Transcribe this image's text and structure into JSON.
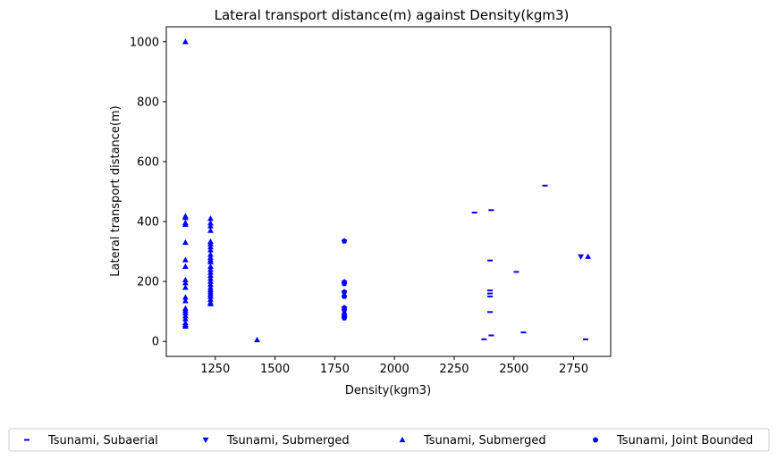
{
  "chart_data": {
    "type": "scatter",
    "title": "Lateral transport distance(m) against Density(kgm3)",
    "xlabel": "Density(kgm3)",
    "ylabel": "Lateral transport distance(m)",
    "xlim": [
      1045,
      2905
    ],
    "ylim": [
      -50,
      1050
    ],
    "xticks": [
      1250,
      1500,
      1750,
      2000,
      2250,
      2500,
      2750
    ],
    "yticks": [
      0,
      200,
      400,
      600,
      800,
      1000
    ],
    "grid": false,
    "legend_position": "bottom, outside plot area",
    "marker_color": "#0000ff",
    "series": [
      {
        "name": "Tsunami, Subaerial",
        "marker": "hline",
        "points": [
          [
            2335,
            430
          ],
          [
            2405,
            438
          ],
          [
            2630,
            520
          ],
          [
            2400,
            270
          ],
          [
            2510,
            232
          ],
          [
            2400,
            170
          ],
          [
            2400,
            160
          ],
          [
            2400,
            150
          ],
          [
            2400,
            98
          ],
          [
            2540,
            30
          ],
          [
            2405,
            20
          ],
          [
            2375,
            7
          ],
          [
            2800,
            7
          ]
        ]
      },
      {
        "name": "Tsunami, Submerged",
        "marker": "triangle-down",
        "points": [
          [
            2780,
            283
          ]
        ]
      },
      {
        "name": "Tsunami, Submerged",
        "marker": "triangle-up",
        "points": [
          [
            1125,
            1000
          ],
          [
            1125,
            418
          ],
          [
            1125,
            413
          ],
          [
            1125,
            396
          ],
          [
            1125,
            390
          ],
          [
            1125,
            330
          ],
          [
            1125,
            272
          ],
          [
            1125,
            250
          ],
          [
            1125,
            205
          ],
          [
            1125,
            195
          ],
          [
            1125,
            180
          ],
          [
            1125,
            147
          ],
          [
            1125,
            135
          ],
          [
            1125,
            110
          ],
          [
            1125,
            103
          ],
          [
            1125,
            95
          ],
          [
            1125,
            85
          ],
          [
            1125,
            75
          ],
          [
            1125,
            62
          ],
          [
            1125,
            55
          ],
          [
            1125,
            50
          ],
          [
            1230,
            410
          ],
          [
            1230,
            395
          ],
          [
            1230,
            385
          ],
          [
            1230,
            370
          ],
          [
            1230,
            333
          ],
          [
            1230,
            325
          ],
          [
            1230,
            315
          ],
          [
            1230,
            305
          ],
          [
            1230,
            290
          ],
          [
            1230,
            280
          ],
          [
            1230,
            272
          ],
          [
            1230,
            265
          ],
          [
            1230,
            250
          ],
          [
            1230,
            240
          ],
          [
            1230,
            230
          ],
          [
            1230,
            220
          ],
          [
            1230,
            210
          ],
          [
            1230,
            200
          ],
          [
            1230,
            190
          ],
          [
            1230,
            180
          ],
          [
            1230,
            172
          ],
          [
            1230,
            165
          ],
          [
            1230,
            157
          ],
          [
            1230,
            150
          ],
          [
            1230,
            140
          ],
          [
            1230,
            130
          ],
          [
            1230,
            125
          ],
          [
            1425,
            5
          ],
          [
            2810,
            283
          ]
        ]
      },
      {
        "name": "Tsunami, Joint Bounded",
        "marker": "pentagon",
        "points": [
          [
            1790,
            335
          ],
          [
            1790,
            198
          ],
          [
            1790,
            193
          ],
          [
            1790,
            165
          ],
          [
            1790,
            150
          ],
          [
            1790,
            112
          ],
          [
            1790,
            105
          ],
          [
            1790,
            90
          ],
          [
            1790,
            83
          ],
          [
            1790,
            78
          ]
        ]
      }
    ]
  }
}
